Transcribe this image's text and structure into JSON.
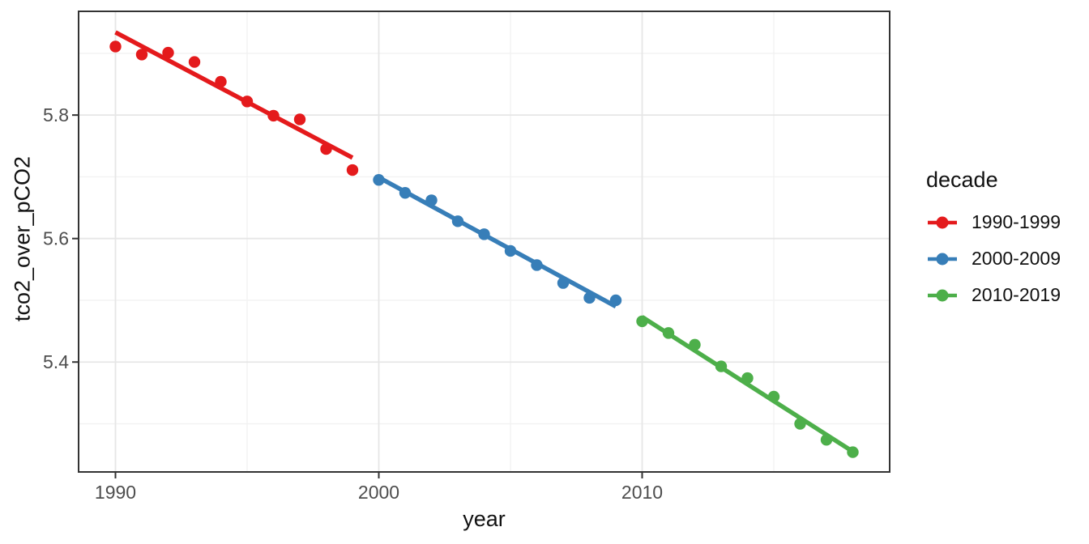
{
  "chart_data": {
    "type": "scatter",
    "title": "",
    "xlabel": "year",
    "ylabel": "tco2_over_pCO2",
    "xlim": [
      1988.6,
      2019.4
    ],
    "ylim": [
      5.222,
      5.968
    ],
    "grid": "major+minor",
    "legend_position": "right",
    "x_ticks": {
      "values": [
        1990,
        2000,
        2010
      ],
      "labels": [
        "1990",
        "2000",
        "2010"
      ]
    },
    "y_ticks": {
      "values": [
        5.4,
        5.6,
        5.8
      ],
      "labels": [
        "5.4",
        "5.6",
        "5.8"
      ]
    },
    "x_minor_gridlines": [
      1995,
      2005,
      2015
    ],
    "y_minor_gridlines": [
      5.3,
      5.5,
      5.7,
      5.9
    ],
    "series": [
      {
        "name": "1990-1999",
        "color": "#E41A1C",
        "x": [
          1990,
          1991,
          1992,
          1993,
          1994,
          1995,
          1996,
          1997,
          1998,
          1999
        ],
        "y": [
          5.911,
          5.898,
          5.901,
          5.886,
          5.854,
          5.822,
          5.799,
          5.793,
          5.745,
          5.711
        ],
        "trend": {
          "x": [
            1990,
            1999
          ],
          "y": [
            5.934,
            5.731
          ]
        }
      },
      {
        "name": "2000-2009",
        "color": "#377EB8",
        "x": [
          2000,
          2001,
          2002,
          2003,
          2004,
          2005,
          2006,
          2007,
          2008,
          2009
        ],
        "y": [
          5.695,
          5.674,
          5.662,
          5.628,
          5.607,
          5.58,
          5.557,
          5.528,
          5.504,
          5.5
        ],
        "trend": {
          "x": [
            2000,
            2009
          ],
          "y": [
            5.699,
            5.49
          ]
        }
      },
      {
        "name": "2010-2019",
        "color": "#4DAF4A",
        "x": [
          2010,
          2011,
          2012,
          2013,
          2014,
          2015,
          2016,
          2017,
          2018
        ],
        "y": [
          5.466,
          5.447,
          5.428,
          5.393,
          5.374,
          5.344,
          5.3,
          5.274,
          5.254
        ],
        "trend": {
          "x": [
            2010,
            2018
          ],
          "y": [
            5.473,
            5.255
          ]
        }
      }
    ]
  },
  "legend": {
    "title": "decade",
    "items": [
      {
        "label": "1990-1999",
        "color": "#E41A1C"
      },
      {
        "label": "2000-2009",
        "color": "#377EB8"
      },
      {
        "label": "2010-2019",
        "color": "#4DAF4A"
      }
    ]
  },
  "colors": {
    "panel_border": "#333333",
    "tick_mark": "#333333",
    "tick_label": "#4D4D4D",
    "grid_major": "#E6E6E6",
    "grid_minor": "#F2F2F2",
    "background": "#FFFFFF"
  }
}
